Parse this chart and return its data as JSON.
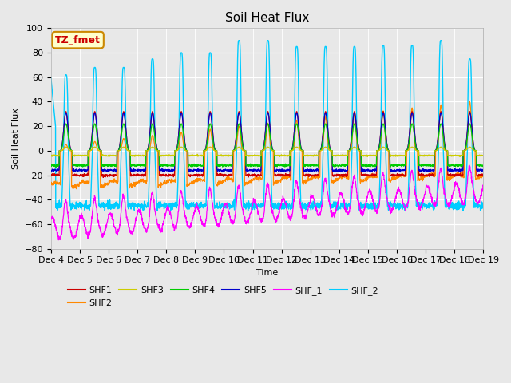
{
  "title": "Soil Heat Flux",
  "xlabel": "Time",
  "ylabel": "Soil Heat Flux",
  "ylim": [
    -80,
    100
  ],
  "xtick_labels": [
    "Dec 4",
    "Dec 5",
    "Dec 6",
    "Dec 7",
    "Dec 8",
    "Dec 9",
    "Dec 10",
    "Dec 11",
    "Dec 12",
    "Dec 13",
    "Dec 14",
    "Dec 15",
    "Dec 16",
    "Dec 17",
    "Dec 18",
    "Dec 19"
  ],
  "series_colors": {
    "SHF1": "#cc0000",
    "SHF2": "#ff8800",
    "SHF3": "#cccc00",
    "SHF4": "#00cc00",
    "SHF5": "#0000cc",
    "SHF_1": "#ff00ff",
    "SHF_2": "#00ccff"
  },
  "annotation_text": "TZ_fmet",
  "annotation_color": "#cc0000",
  "annotation_bg": "#ffffcc",
  "annotation_border": "#cc8800",
  "bg_color": "#e8e8e8",
  "plot_bg": "#e8e8e8",
  "title_fontsize": 11
}
